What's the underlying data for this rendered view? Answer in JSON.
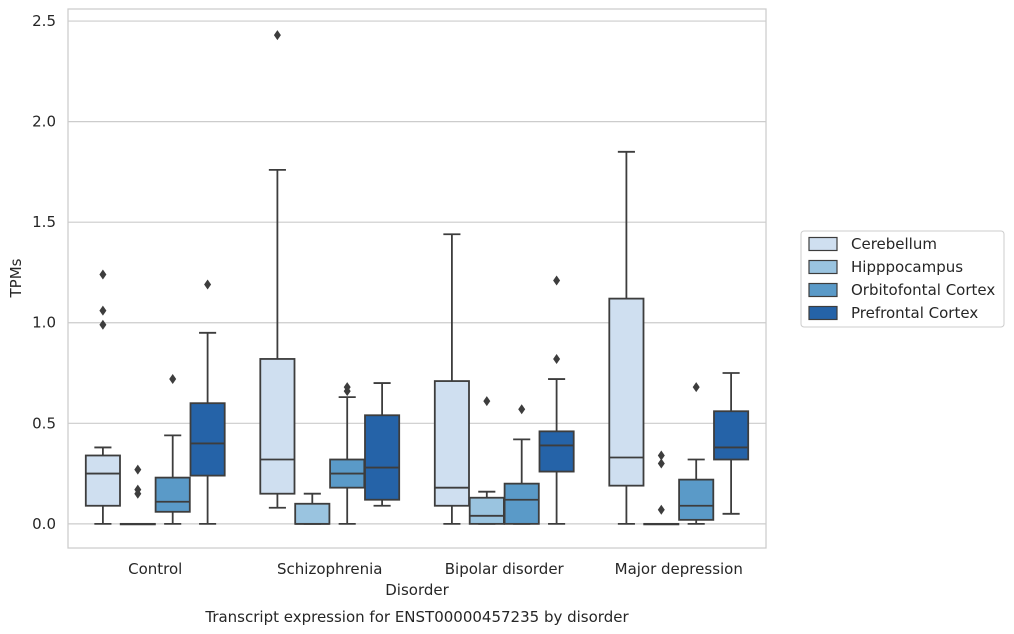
{
  "chart_data": {
    "type": "box",
    "title": "Transcript expression for ENST00000457235 by disorder",
    "xlabel": "Disorder",
    "ylabel": "TPMs",
    "ylim": [
      -0.12,
      2.56
    ],
    "yticks": [
      0.0,
      0.5,
      1.0,
      1.5,
      2.0,
      2.5
    ],
    "ytick_labels": [
      "0.0",
      "0.5",
      "1.0",
      "1.5",
      "2.0",
      "2.5"
    ],
    "categories": [
      "Control",
      "Schizophrenia",
      "Bipolar disorder",
      "Major depression"
    ],
    "grid": true,
    "legend_position": "right",
    "series": [
      {
        "name": "Cerebellum",
        "color": "#cfdff0",
        "boxes": [
          {
            "whisker_low": 0.0,
            "q1": 0.09,
            "median": 0.25,
            "q3": 0.34,
            "whisker_high": 0.38,
            "outliers": [
              0.99,
              1.06,
              1.24
            ]
          },
          {
            "whisker_low": 0.08,
            "q1": 0.15,
            "median": 0.32,
            "q3": 0.82,
            "whisker_high": 1.76,
            "outliers": [
              2.43
            ]
          },
          {
            "whisker_low": 0.0,
            "q1": 0.09,
            "median": 0.18,
            "q3": 0.71,
            "whisker_high": 1.44,
            "outliers": []
          },
          {
            "whisker_low": 0.0,
            "q1": 0.19,
            "median": 0.33,
            "q3": 1.12,
            "whisker_high": 1.85,
            "outliers": []
          }
        ]
      },
      {
        "name": "Hipppocampus",
        "color": "#9ac4e0",
        "boxes": [
          {
            "whisker_low": 0.0,
            "q1": 0.0,
            "median": 0.0,
            "q3": 0.0,
            "whisker_high": 0.0,
            "outliers": [
              0.15,
              0.17,
              0.27
            ]
          },
          {
            "whisker_low": 0.0,
            "q1": 0.0,
            "median": 0.0,
            "q3": 0.1,
            "whisker_high": 0.15,
            "outliers": []
          },
          {
            "whisker_low": 0.0,
            "q1": 0.0,
            "median": 0.04,
            "q3": 0.13,
            "whisker_high": 0.16,
            "outliers": [
              0.61
            ]
          },
          {
            "whisker_low": 0.0,
            "q1": 0.0,
            "median": 0.0,
            "q3": 0.0,
            "whisker_high": 0.0,
            "outliers": [
              0.07,
              0.3,
              0.34
            ]
          }
        ]
      },
      {
        "name": "Orbitofontal Cortex",
        "color": "#5a9ac8",
        "boxes": [
          {
            "whisker_low": 0.0,
            "q1": 0.06,
            "median": 0.11,
            "q3": 0.23,
            "whisker_high": 0.44,
            "outliers": [
              0.72
            ]
          },
          {
            "whisker_low": 0.0,
            "q1": 0.18,
            "median": 0.25,
            "q3": 0.32,
            "whisker_high": 0.63,
            "outliers": [
              0.66,
              0.68
            ]
          },
          {
            "whisker_low": 0.0,
            "q1": 0.0,
            "median": 0.12,
            "q3": 0.2,
            "whisker_high": 0.42,
            "outliers": [
              0.57
            ]
          },
          {
            "whisker_low": 0.0,
            "q1": 0.02,
            "median": 0.09,
            "q3": 0.22,
            "whisker_high": 0.32,
            "outliers": [
              0.68
            ]
          }
        ]
      },
      {
        "name": "Prefrontal Cortex",
        "color": "#2563a8",
        "boxes": [
          {
            "whisker_low": 0.0,
            "q1": 0.24,
            "median": 0.4,
            "q3": 0.6,
            "whisker_high": 0.95,
            "outliers": [
              1.19
            ]
          },
          {
            "whisker_low": 0.09,
            "q1": 0.12,
            "median": 0.28,
            "q3": 0.54,
            "whisker_high": 0.7,
            "outliers": []
          },
          {
            "whisker_low": 0.0,
            "q1": 0.26,
            "median": 0.39,
            "q3": 0.46,
            "whisker_high": 0.72,
            "outliers": [
              0.82,
              1.21
            ]
          },
          {
            "whisker_low": 0.05,
            "q1": 0.32,
            "median": 0.38,
            "q3": 0.56,
            "whisker_high": 0.75,
            "outliers": []
          }
        ]
      }
    ]
  }
}
